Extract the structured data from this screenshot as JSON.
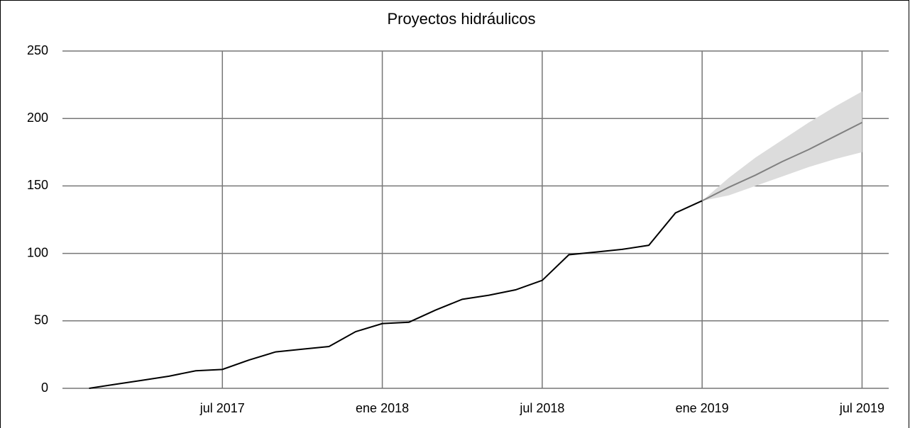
{
  "chart_data": {
    "type": "line",
    "title": "Proyectos hidráulicos",
    "x": [
      "2017-02",
      "2017-03",
      "2017-04",
      "2017-05",
      "2017-06",
      "2017-07",
      "2017-08",
      "2017-09",
      "2017-10",
      "2017-11",
      "2017-12",
      "2018-01",
      "2018-02",
      "2018-03",
      "2018-04",
      "2018-05",
      "2018-06",
      "2018-07",
      "2018-08",
      "2018-09",
      "2018-10",
      "2018-11",
      "2018-12",
      "2019-01",
      "2019-02",
      "2019-03",
      "2019-04",
      "2019-05",
      "2019-06",
      "2019-07"
    ],
    "series": [
      {
        "color": "#000000",
        "values": [
          0,
          3,
          6,
          9,
          13,
          14,
          21,
          27,
          29,
          31,
          42,
          48,
          49,
          58,
          66,
          69,
          73,
          80,
          99,
          101,
          103,
          106,
          130,
          139,
          null,
          null,
          null,
          null,
          null,
          null
        ]
      },
      {
        "color": "#808080",
        "values": [
          null,
          null,
          null,
          null,
          null,
          null,
          null,
          null,
          null,
          null,
          null,
          null,
          null,
          null,
          null,
          null,
          null,
          null,
          null,
          null,
          null,
          null,
          null,
          139,
          149,
          158,
          168,
          177,
          187,
          197
        ],
        "lower": [
          null,
          null,
          null,
          null,
          null,
          null,
          null,
          null,
          null,
          null,
          null,
          null,
          null,
          null,
          null,
          null,
          null,
          null,
          null,
          null,
          null,
          null,
          null,
          139,
          143,
          150,
          157,
          164,
          170,
          175
        ],
        "upper": [
          null,
          null,
          null,
          null,
          null,
          null,
          null,
          null,
          null,
          null,
          null,
          null,
          null,
          null,
          null,
          null,
          null,
          null,
          null,
          null,
          null,
          null,
          null,
          139,
          156,
          171,
          184,
          197,
          209,
          220
        ],
        "band_color": "#dcdcdc"
      }
    ],
    "xlim": [
      "2017-01",
      "2019-08"
    ],
    "xticks": [
      {
        "value": "2017-07",
        "label": "jul 2017"
      },
      {
        "value": "2018-01",
        "label": "ene 2018"
      },
      {
        "value": "2018-07",
        "label": "jul 2018"
      },
      {
        "value": "2019-01",
        "label": "ene 2019"
      },
      {
        "value": "2019-07",
        "label": "jul 2019"
      }
    ],
    "ylim": [
      0,
      250
    ],
    "yticks": [
      0,
      50,
      100,
      150,
      200,
      250
    ],
    "grid": true
  }
}
